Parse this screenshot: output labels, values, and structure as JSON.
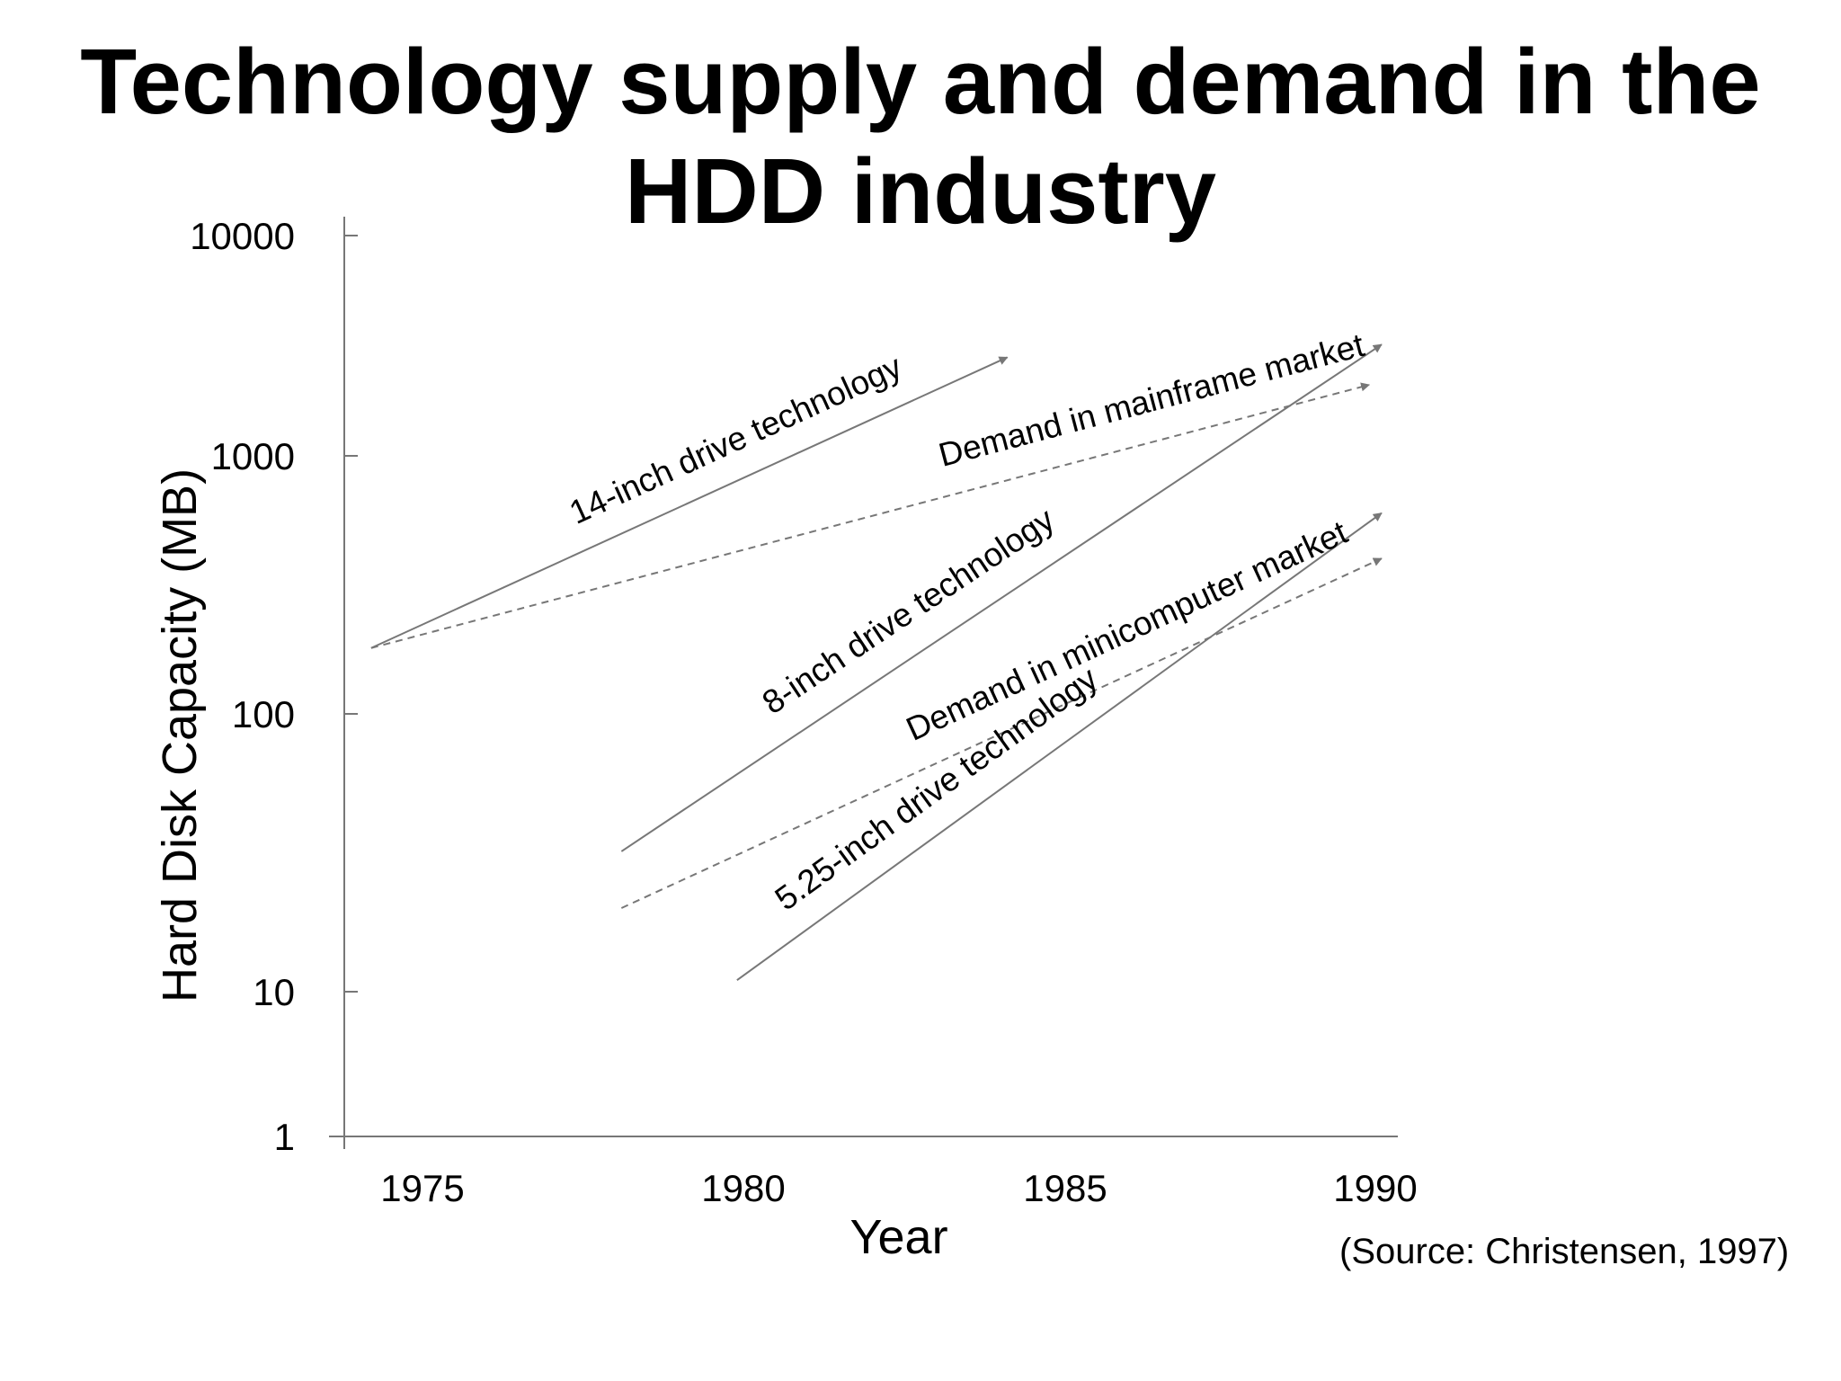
{
  "title_line1": "Technology supply and demand in the",
  "title_line2": "HDD industry",
  "source": "(Source: Christensen, 1997)",
  "chart_data": {
    "type": "line",
    "title": "Technology supply and demand in the HDD industry",
    "xlabel": "Year",
    "ylabel": "Hard Disk Capacity (MB)",
    "y_scale": "log",
    "xlim": [
      1974,
      1990.4
    ],
    "ylim": [
      1,
      10000
    ],
    "x_ticks": [
      "1975",
      "1980",
      "1985",
      "1990"
    ],
    "x_tick_values": [
      1975,
      1980,
      1985,
      1990
    ],
    "y_ticks": [
      "1",
      "10",
      "100",
      "1000",
      "10000"
    ],
    "y_tick_values": [
      1,
      10,
      100,
      1000,
      10000
    ],
    "grid": false,
    "line_color": "#777777",
    "series": [
      {
        "name": "14-inch drive technology",
        "style": "solid",
        "x": [
          1974.2,
          1984.1
        ],
        "y": [
          180,
          2800
        ]
      },
      {
        "name": "Demand in mainframe market",
        "style": "dashed",
        "x": [
          1974.2,
          1989.9
        ],
        "y": [
          180,
          2100
        ]
      },
      {
        "name": "8-inch drive technology",
        "style": "solid",
        "x": [
          1978.1,
          1990.1
        ],
        "y": [
          32,
          3200
        ]
      },
      {
        "name": "Demand in minicomputer market",
        "style": "dashed",
        "x": [
          1978.1,
          1990.1
        ],
        "y": [
          20,
          400
        ]
      },
      {
        "name": "5.25-inch drive technology",
        "style": "solid",
        "x": [
          1979.9,
          1990.1
        ],
        "y": [
          11,
          600
        ]
      }
    ]
  }
}
